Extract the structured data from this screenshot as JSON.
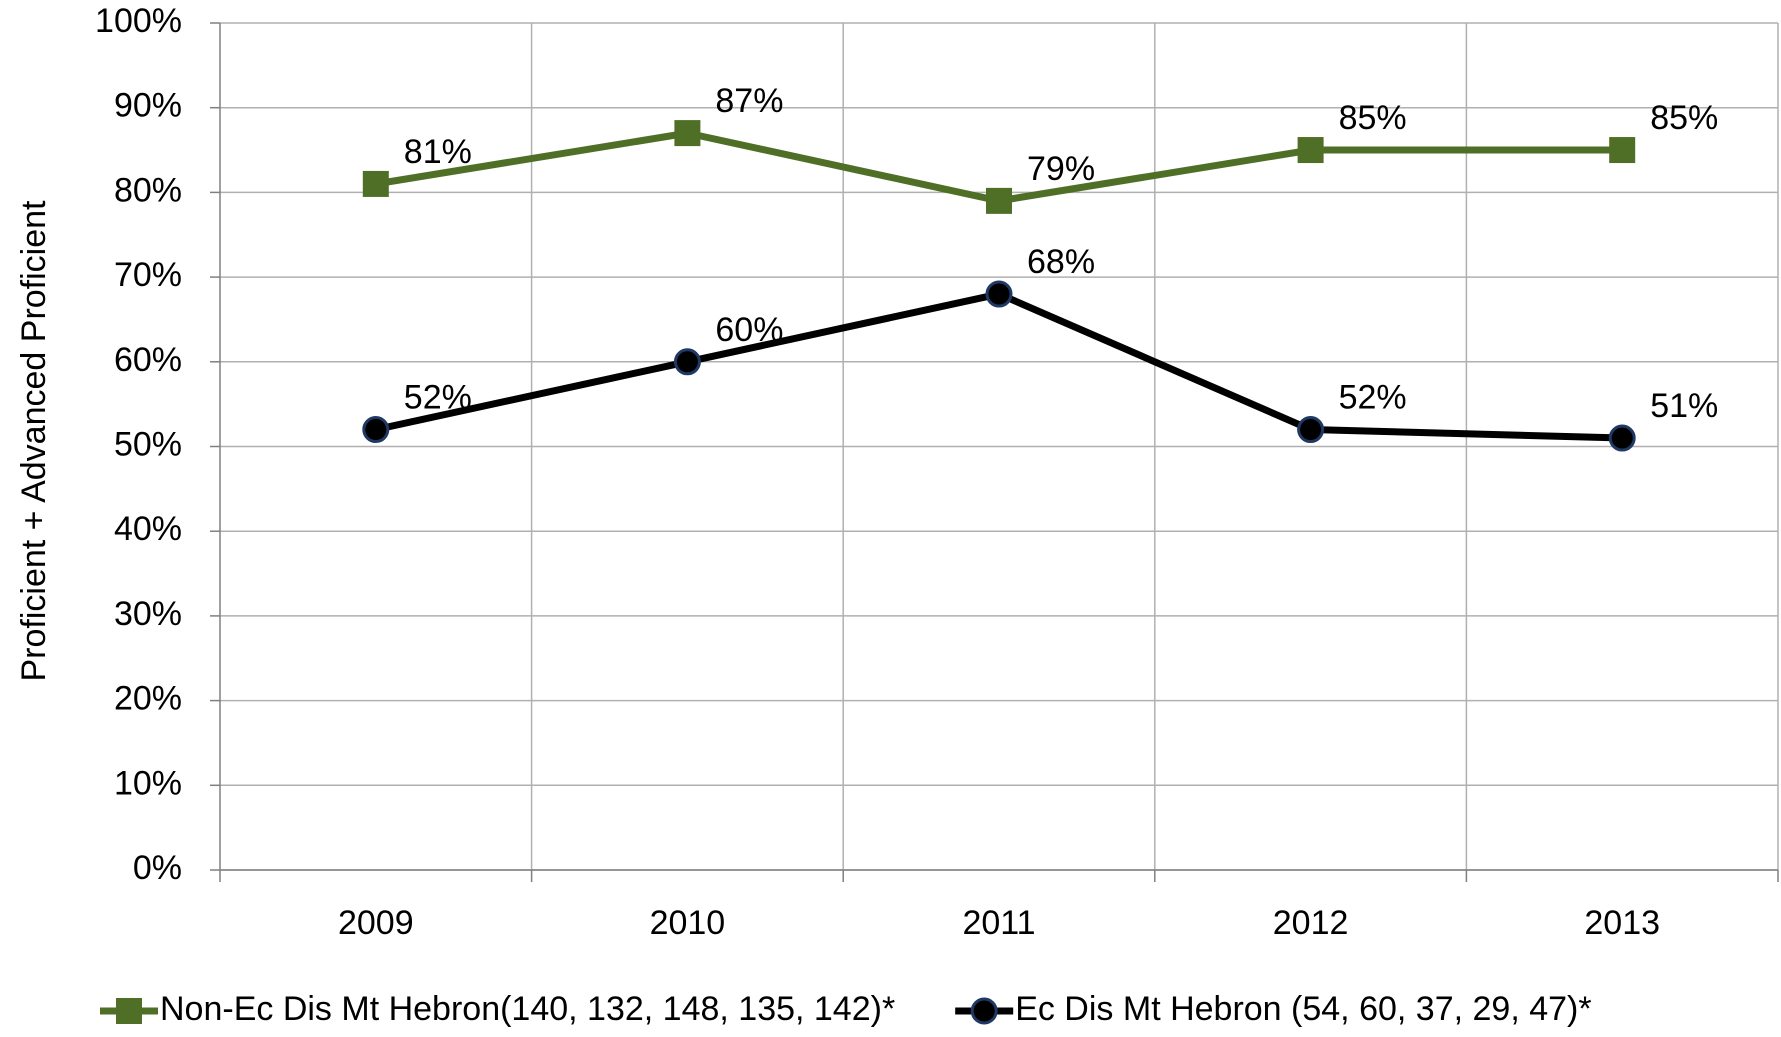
{
  "chart_data": {
    "type": "line",
    "ylabel": "Proficient + Advanced Proficient",
    "categories": [
      "2009",
      "2010",
      "2011",
      "2012",
      "2013"
    ],
    "series": [
      {
        "name": "Non-Ec Dis Mt Hebron(140, 132, 148, 135, 142)*",
        "color": "#4f6f26",
        "marker": "square",
        "values": [
          81,
          87,
          79,
          85,
          85
        ],
        "value_labels": [
          "81%",
          "87%",
          "79%",
          "85%",
          "85%"
        ]
      },
      {
        "name": "Ec Dis Mt Hebron (54, 60, 37, 29, 47)*",
        "color": "#000000",
        "marker": "circle",
        "values": [
          52,
          60,
          68,
          52,
          51
        ],
        "value_labels": [
          "52%",
          "60%",
          "68%",
          "52%",
          "51%"
        ]
      }
    ],
    "ylim": [
      0,
      100
    ],
    "yticks": [
      {
        "value": 0,
        "label": "0%"
      },
      {
        "value": 10,
        "label": "10%"
      },
      {
        "value": 20,
        "label": "20%"
      },
      {
        "value": 30,
        "label": "30%"
      },
      {
        "value": 40,
        "label": "40%"
      },
      {
        "value": 50,
        "label": "50%"
      },
      {
        "value": 60,
        "label": "60%"
      },
      {
        "value": 70,
        "label": "70%"
      },
      {
        "value": 80,
        "label": "80%"
      },
      {
        "value": 90,
        "label": "90%"
      },
      {
        "value": 100,
        "label": "100%"
      }
    ],
    "grid": true,
    "legend": "bottom"
  }
}
